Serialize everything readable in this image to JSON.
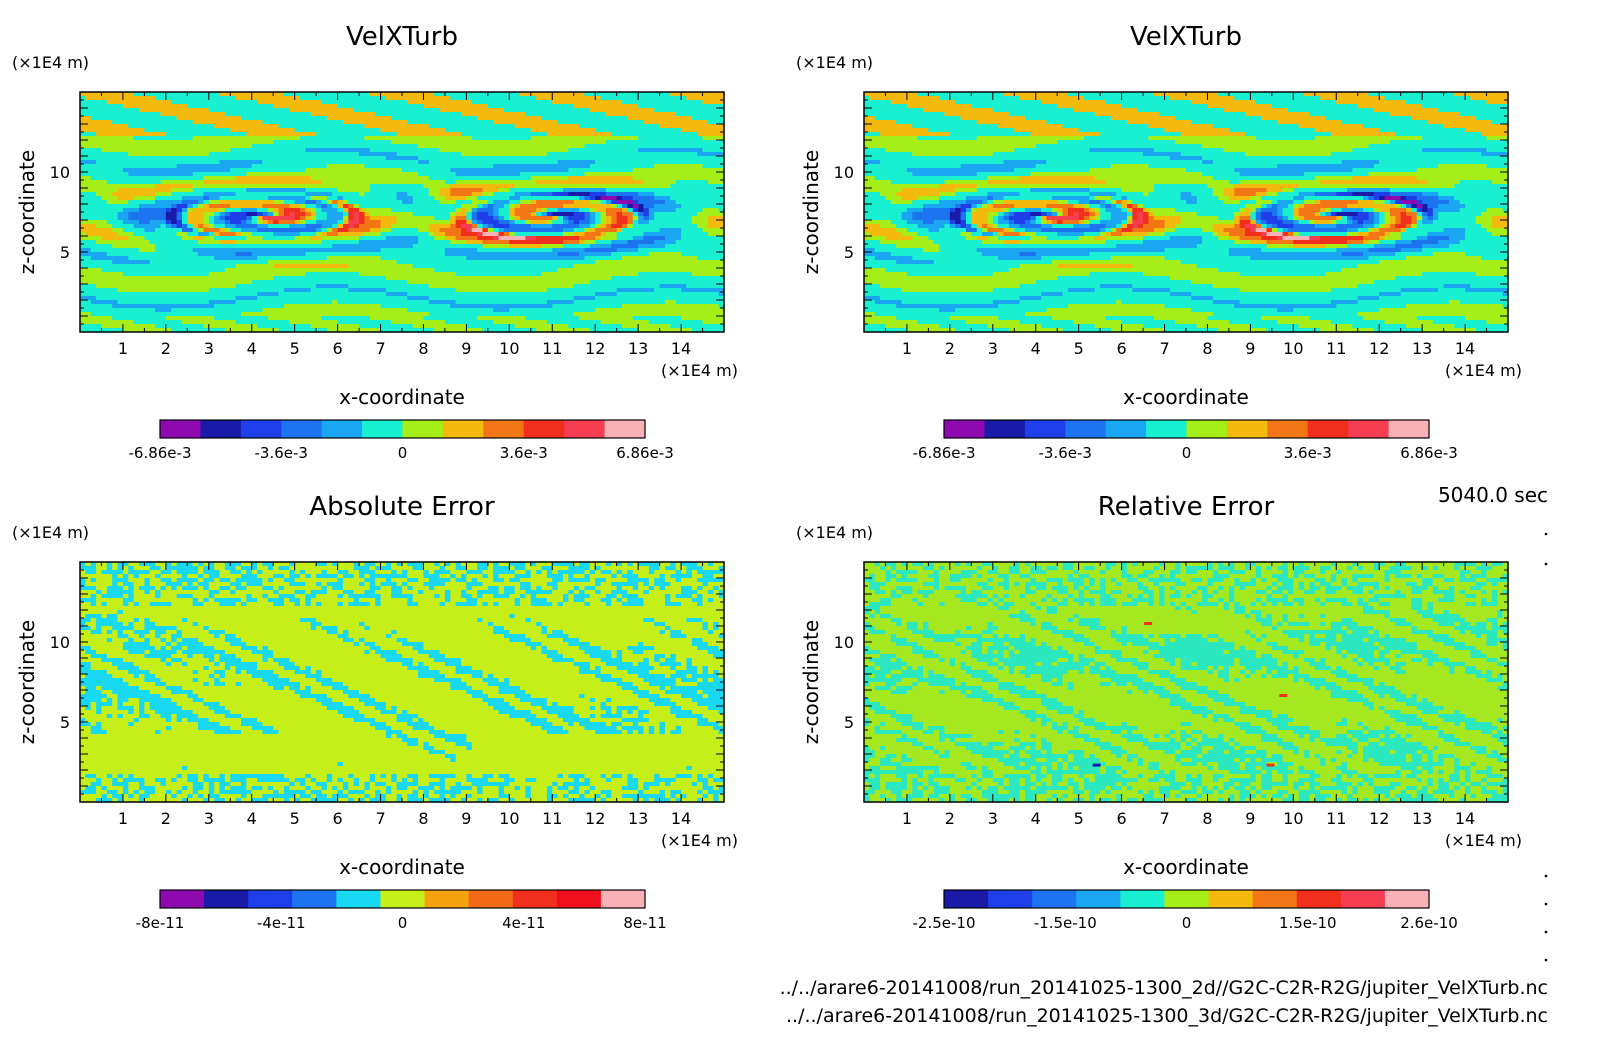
{
  "figure": {
    "time_label": "5040.0 sec",
    "file_paths": [
      "../../arare6-20141008/run_20141025-1300_2d//G2C-C2R-R2G/jupiter_VelXTurb.nc",
      "../../arare6-20141008/run_20141025-1300_3d/G2C-C2R-R2G/jupiter_VelXTurb.nc"
    ]
  },
  "chart_data": [
    {
      "type": "heatmap",
      "title": "VelXTurb",
      "xlabel": "x-coordinate",
      "ylabel": "z-coordinate",
      "x_unit": "(×1E4 m)",
      "y_unit": "(×1E4 m)",
      "xlim": [
        0,
        15
      ],
      "ylim": [
        0,
        15
      ],
      "x_ticks": [
        1,
        2,
        3,
        4,
        5,
        6,
        7,
        8,
        9,
        10,
        11,
        12,
        13,
        14
      ],
      "y_ticks": [
        5,
        10
      ],
      "pattern": "vortex",
      "colorbar": {
        "colors": [
          "#8e0ab0",
          "#1a1aa8",
          "#1d3ee8",
          "#1c74f0",
          "#1ba6f2",
          "#19f0d2",
          "#a6ee18",
          "#f3b90d",
          "#f37616",
          "#f0301c",
          "#f53d52",
          "#f8b1b6"
        ],
        "tick_labels": [
          "-6.86e-3",
          "-3.6e-3",
          "0",
          "3.6e-3",
          "6.86e-3"
        ]
      }
    },
    {
      "type": "heatmap",
      "title": "VelXTurb",
      "xlabel": "x-coordinate",
      "ylabel": "z-coordinate",
      "x_unit": "(×1E4 m)",
      "y_unit": "(×1E4 m)",
      "xlim": [
        0,
        15
      ],
      "ylim": [
        0,
        15
      ],
      "x_ticks": [
        1,
        2,
        3,
        4,
        5,
        6,
        7,
        8,
        9,
        10,
        11,
        12,
        13,
        14
      ],
      "y_ticks": [
        5,
        10
      ],
      "pattern": "vortex",
      "colorbar": {
        "colors": [
          "#8e0ab0",
          "#1a1aa8",
          "#1d3ee8",
          "#1c74f0",
          "#1ba6f2",
          "#19f0d2",
          "#a6ee18",
          "#f3b90d",
          "#f37616",
          "#f0301c",
          "#f53d52",
          "#f8b1b6"
        ],
        "tick_labels": [
          "-6.86e-3",
          "-3.6e-3",
          "0",
          "3.6e-3",
          "6.86e-3"
        ]
      }
    },
    {
      "type": "heatmap",
      "title": "Absolute Error",
      "xlabel": "x-coordinate",
      "ylabel": "z-coordinate",
      "x_unit": "(×1E4 m)",
      "y_unit": "(×1E4 m)",
      "xlim": [
        0,
        15
      ],
      "ylim": [
        0,
        15
      ],
      "x_ticks": [
        1,
        2,
        3,
        4,
        5,
        6,
        7,
        8,
        9,
        10,
        11,
        12,
        13,
        14
      ],
      "y_ticks": [
        5,
        10
      ],
      "pattern": "noise-abs",
      "colorbar": {
        "colors": [
          "#8e0ab0",
          "#1a1aa8",
          "#1d3ee8",
          "#1c74f0",
          "#19d8f2",
          "#c6ee18",
          "#f3a30d",
          "#f36a16",
          "#f0301c",
          "#f0101c",
          "#f8b1b6"
        ],
        "tick_labels": [
          "-8e-11",
          "-4e-11",
          "0",
          "4e-11",
          "8e-11"
        ]
      }
    },
    {
      "type": "heatmap",
      "title": "Relative Error",
      "xlabel": "x-coordinate",
      "ylabel": "z-coordinate",
      "x_unit": "(×1E4 m)",
      "y_unit": "(×1E4 m)",
      "xlim": [
        0,
        15
      ],
      "ylim": [
        0,
        15
      ],
      "x_ticks": [
        1,
        2,
        3,
        4,
        5,
        6,
        7,
        8,
        9,
        10,
        11,
        12,
        13,
        14
      ],
      "y_ticks": [
        5,
        10
      ],
      "pattern": "noise-rel",
      "colorbar": {
        "colors": [
          "#1a1aa8",
          "#1d3ee8",
          "#1c74f0",
          "#1ba6f2",
          "#19f0d2",
          "#a6ee18",
          "#f3b90d",
          "#f37616",
          "#f0301c",
          "#f53d52",
          "#f8b1b6"
        ],
        "tick_labels": [
          "-2.5e-10",
          "-1.5e-10",
          "0",
          "1.5e-10",
          "2.6e-10"
        ]
      }
    }
  ]
}
